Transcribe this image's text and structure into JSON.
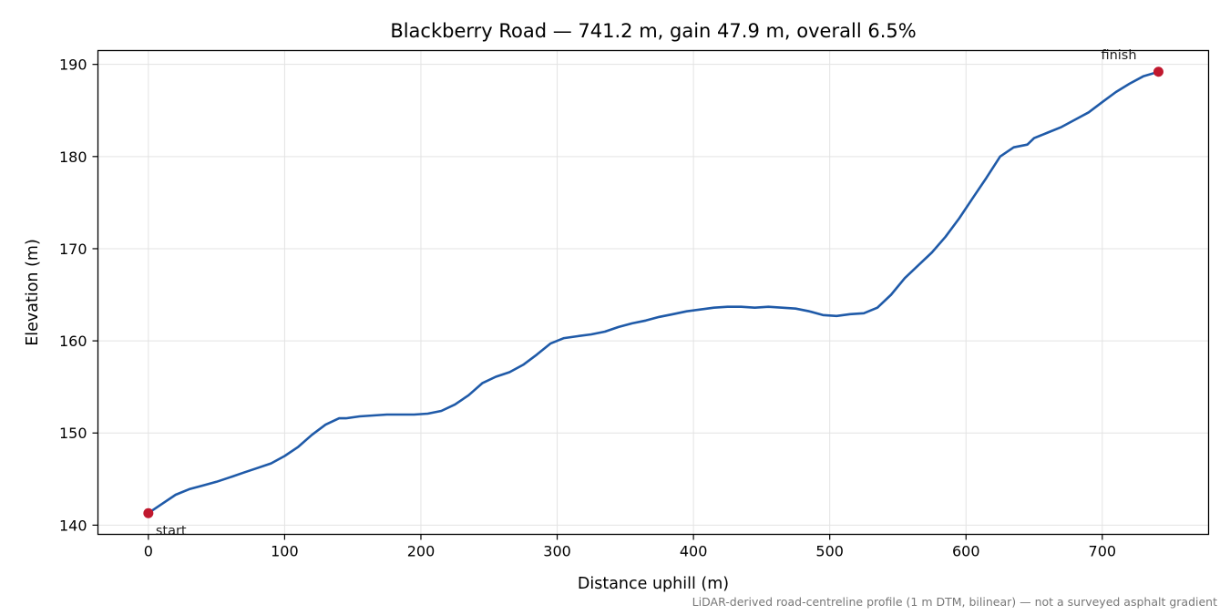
{
  "chart_data": {
    "type": "line",
    "title": "Blackberry Road — 741.2 m, gain 47.9 m, overall 6.5%",
    "xlabel": "Distance uphill (m)",
    "ylabel": "Elevation (m)",
    "xlim": [
      -37,
      778
    ],
    "ylim": [
      139,
      191.5
    ],
    "xticks": [
      0,
      100,
      200,
      300,
      400,
      500,
      600,
      700
    ],
    "yticks": [
      140,
      150,
      160,
      170,
      180,
      190
    ],
    "grid": true,
    "series": [
      {
        "color": "#1f5aa8",
        "x": [
          0,
          10,
          20,
          30,
          40,
          50,
          60,
          70,
          80,
          90,
          100,
          110,
          120,
          130,
          140,
          145,
          155,
          165,
          175,
          185,
          195,
          205,
          215,
          225,
          235,
          245,
          255,
          265,
          275,
          285,
          295,
          305,
          315,
          325,
          335,
          345,
          355,
          365,
          375,
          385,
          395,
          405,
          415,
          425,
          435,
          445,
          455,
          465,
          475,
          485,
          495,
          505,
          515,
          525,
          535,
          545,
          555,
          565,
          575,
          585,
          595,
          605,
          615,
          625,
          635,
          645,
          650,
          660,
          670,
          680,
          690,
          700,
          710,
          720,
          730,
          741.2
        ],
        "y": [
          141.3,
          142.3,
          143.3,
          143.9,
          144.3,
          144.7,
          145.2,
          145.7,
          146.2,
          146.7,
          147.5,
          148.5,
          149.8,
          150.9,
          151.6,
          151.6,
          151.8,
          151.9,
          152.0,
          152.0,
          152.0,
          152.1,
          152.4,
          153.1,
          154.1,
          155.4,
          156.1,
          156.6,
          157.4,
          158.5,
          159.7,
          160.3,
          160.5,
          160.7,
          161.0,
          161.5,
          161.9,
          162.2,
          162.6,
          162.9,
          163.2,
          163.4,
          163.6,
          163.7,
          163.7,
          163.6,
          163.7,
          163.6,
          163.5,
          163.2,
          162.8,
          162.7,
          162.9,
          163.0,
          163.6,
          165.0,
          166.8,
          168.2,
          169.6,
          171.3,
          173.3,
          175.5,
          177.7,
          180.0,
          181.0,
          181.3,
          182.0,
          182.6,
          183.2,
          184.0,
          184.8,
          185.9,
          187.0,
          187.9,
          188.7,
          189.2
        ]
      }
    ],
    "markers": [
      {
        "x": 0,
        "y": 141.3,
        "label": "start",
        "color": "#c0182e"
      },
      {
        "x": 741.2,
        "y": 189.2,
        "label": "finish",
        "color": "#c0182e"
      }
    ],
    "footnote": "LiDAR-derived road-centreline profile (1 m DTM, bilinear) — not a surveyed asphalt gradient"
  }
}
